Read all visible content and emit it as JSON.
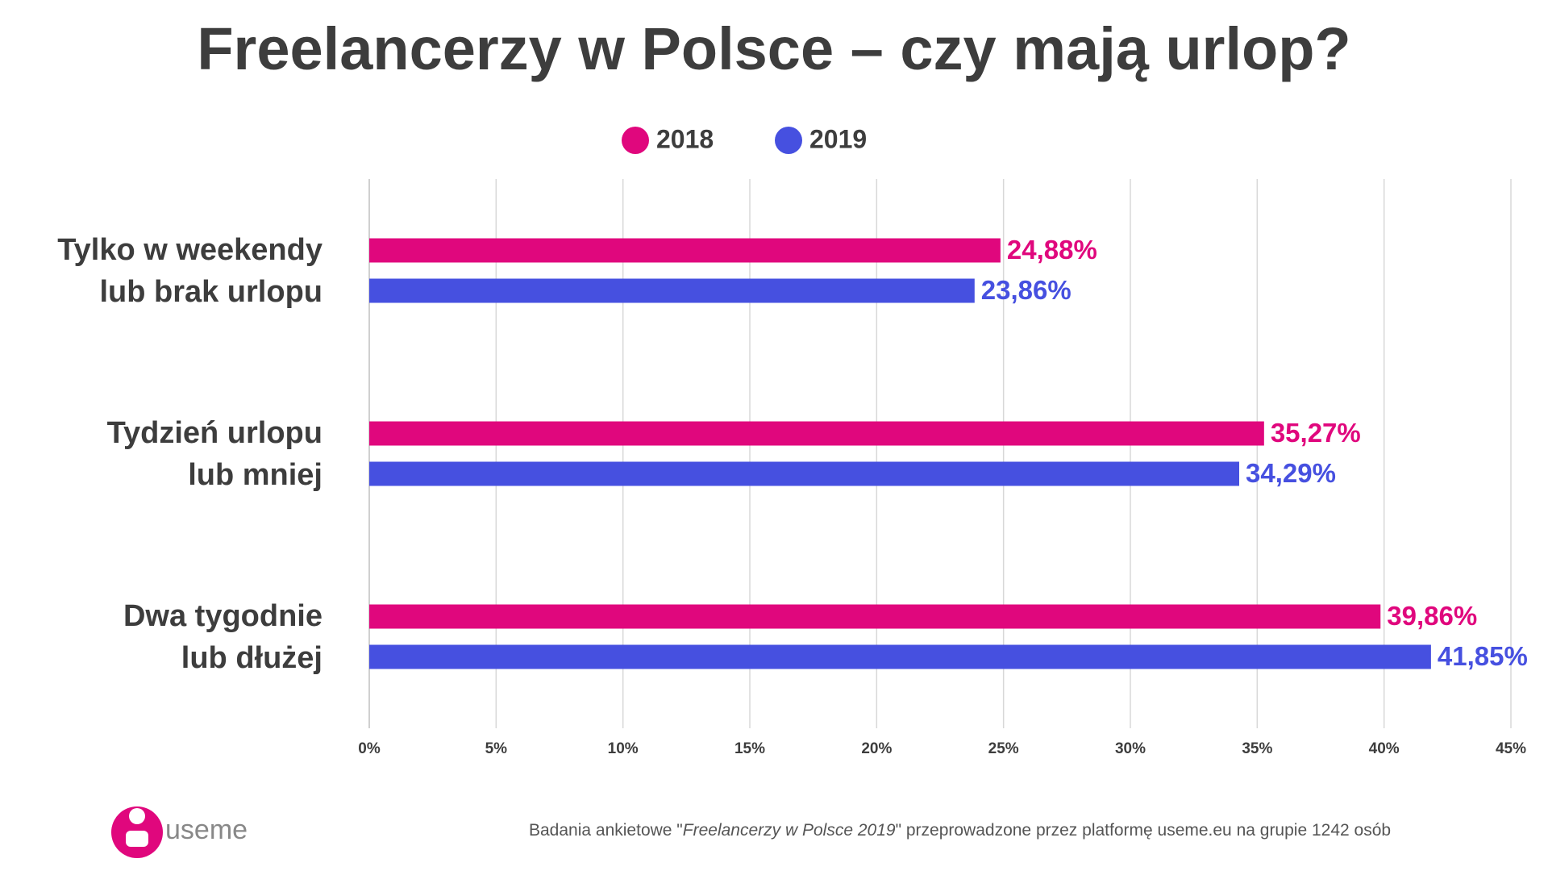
{
  "chart_data": {
    "type": "hbar",
    "title": "Freelancerzy w Polsce – czy mają urlop?",
    "categories": [
      "Tylko w weekendy\nlub brak urlopu",
      "Tydzień urlopu\nlub mniej",
      "Dwa tygodnie\nlub dłużej"
    ],
    "series": [
      {
        "name": "2018",
        "color": "#e0077d",
        "values": [
          24.88,
          35.27,
          39.86
        ],
        "value_labels": [
          "24,88%",
          "35,27%",
          "39,86%"
        ]
      },
      {
        "name": "2019",
        "color": "#4650e0",
        "values": [
          23.86,
          34.29,
          41.85
        ],
        "value_labels": [
          "23,86%",
          "34,29%",
          "41,85%"
        ]
      }
    ],
    "xlim": [
      0,
      45
    ],
    "xticks": [
      {
        "value": 0,
        "label": "0%"
      },
      {
        "value": 5,
        "label": "5%"
      },
      {
        "value": 10,
        "label": "10%"
      },
      {
        "value": 15,
        "label": "15%"
      },
      {
        "value": 20,
        "label": "20%"
      },
      {
        "value": 25,
        "label": "25%"
      },
      {
        "value": 30,
        "label": "30%"
      },
      {
        "value": 35,
        "label": "35%"
      },
      {
        "value": 40,
        "label": "40%"
      },
      {
        "value": 45,
        "label": "45%"
      }
    ],
    "grid": true,
    "legend": "top"
  },
  "footer": {
    "logo": "useme",
    "source": [
      "Badania ankietowe \"",
      "Freelancerzy w Polsce 2019",
      "\" przeprowadzone przez platformę useme.eu na grupie 1242 osób"
    ]
  }
}
